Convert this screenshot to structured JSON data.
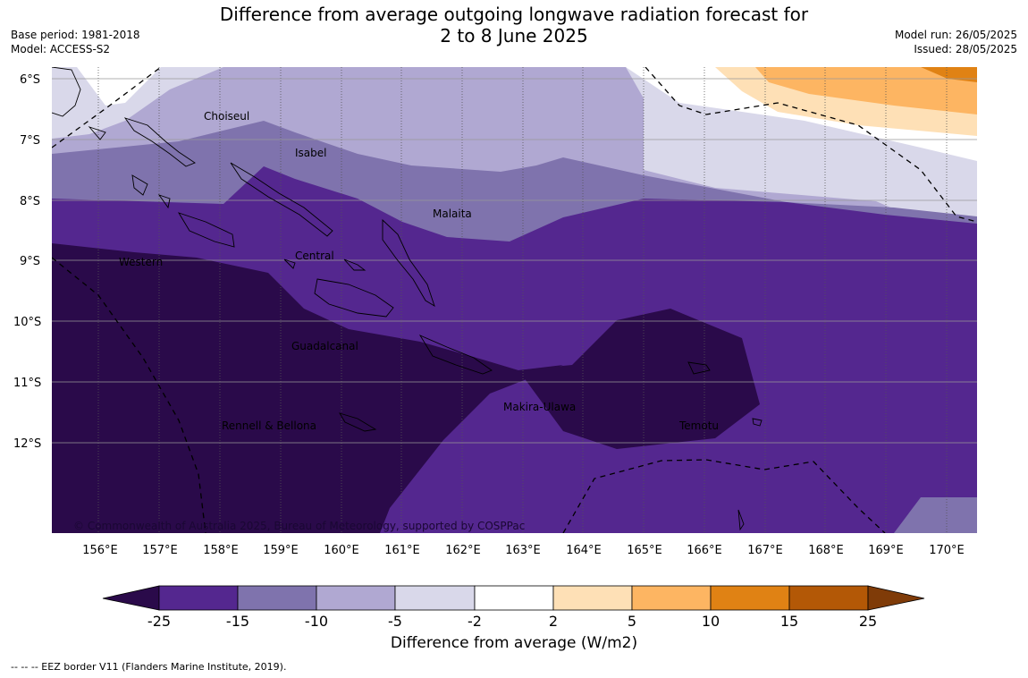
{
  "header": {
    "title_line1": "Difference from average outgoing longwave radiation forecast for",
    "title_line2": "2 to 8 June 2025",
    "base_period": "Base period: 1981-2018",
    "model": "Model: ACCESS-S2",
    "model_run": "Model run: 26/05/2025",
    "issued": "Issued: 28/05/2025"
  },
  "map": {
    "lat_labels": [
      "6°S",
      "7°S",
      "8°S",
      "9°S",
      "10°S",
      "11°S",
      "12°S"
    ],
    "lon_labels": [
      "156°E",
      "157°E",
      "158°E",
      "159°E",
      "160°E",
      "161°E",
      "162°E",
      "163°E",
      "164°E",
      "165°E",
      "166°E",
      "167°E",
      "168°E",
      "169°E",
      "170°E"
    ],
    "places": [
      "Choiseul",
      "Isabel",
      "Malaita",
      "Central",
      "Western",
      "Guadalcanal",
      "Makira-Ulawa",
      "Rennell & Bellona",
      "Temotu"
    ],
    "copyright": "© Commonwealth of Australia 2025, Bureau of Meteorology, supported by COSPPac"
  },
  "colorbar": {
    "tick_labels": [
      "-25",
      "-15",
      "-10",
      "-5",
      "-2",
      "2",
      "5",
      "10",
      "15",
      "25"
    ],
    "colors": [
      "#2a0a4a",
      "#54278f",
      "#7f73ad",
      "#b0a8d2",
      "#d9d8ea",
      "#ffffff",
      "#fee0b6",
      "#fdb562",
      "#e08214",
      "#b35806",
      "#7f3b08"
    ],
    "label": "Difference from average (W/m2)"
  },
  "footnote": "--  --  -- EEZ border V11 (Flanders Marine Institute, 2019)."
}
